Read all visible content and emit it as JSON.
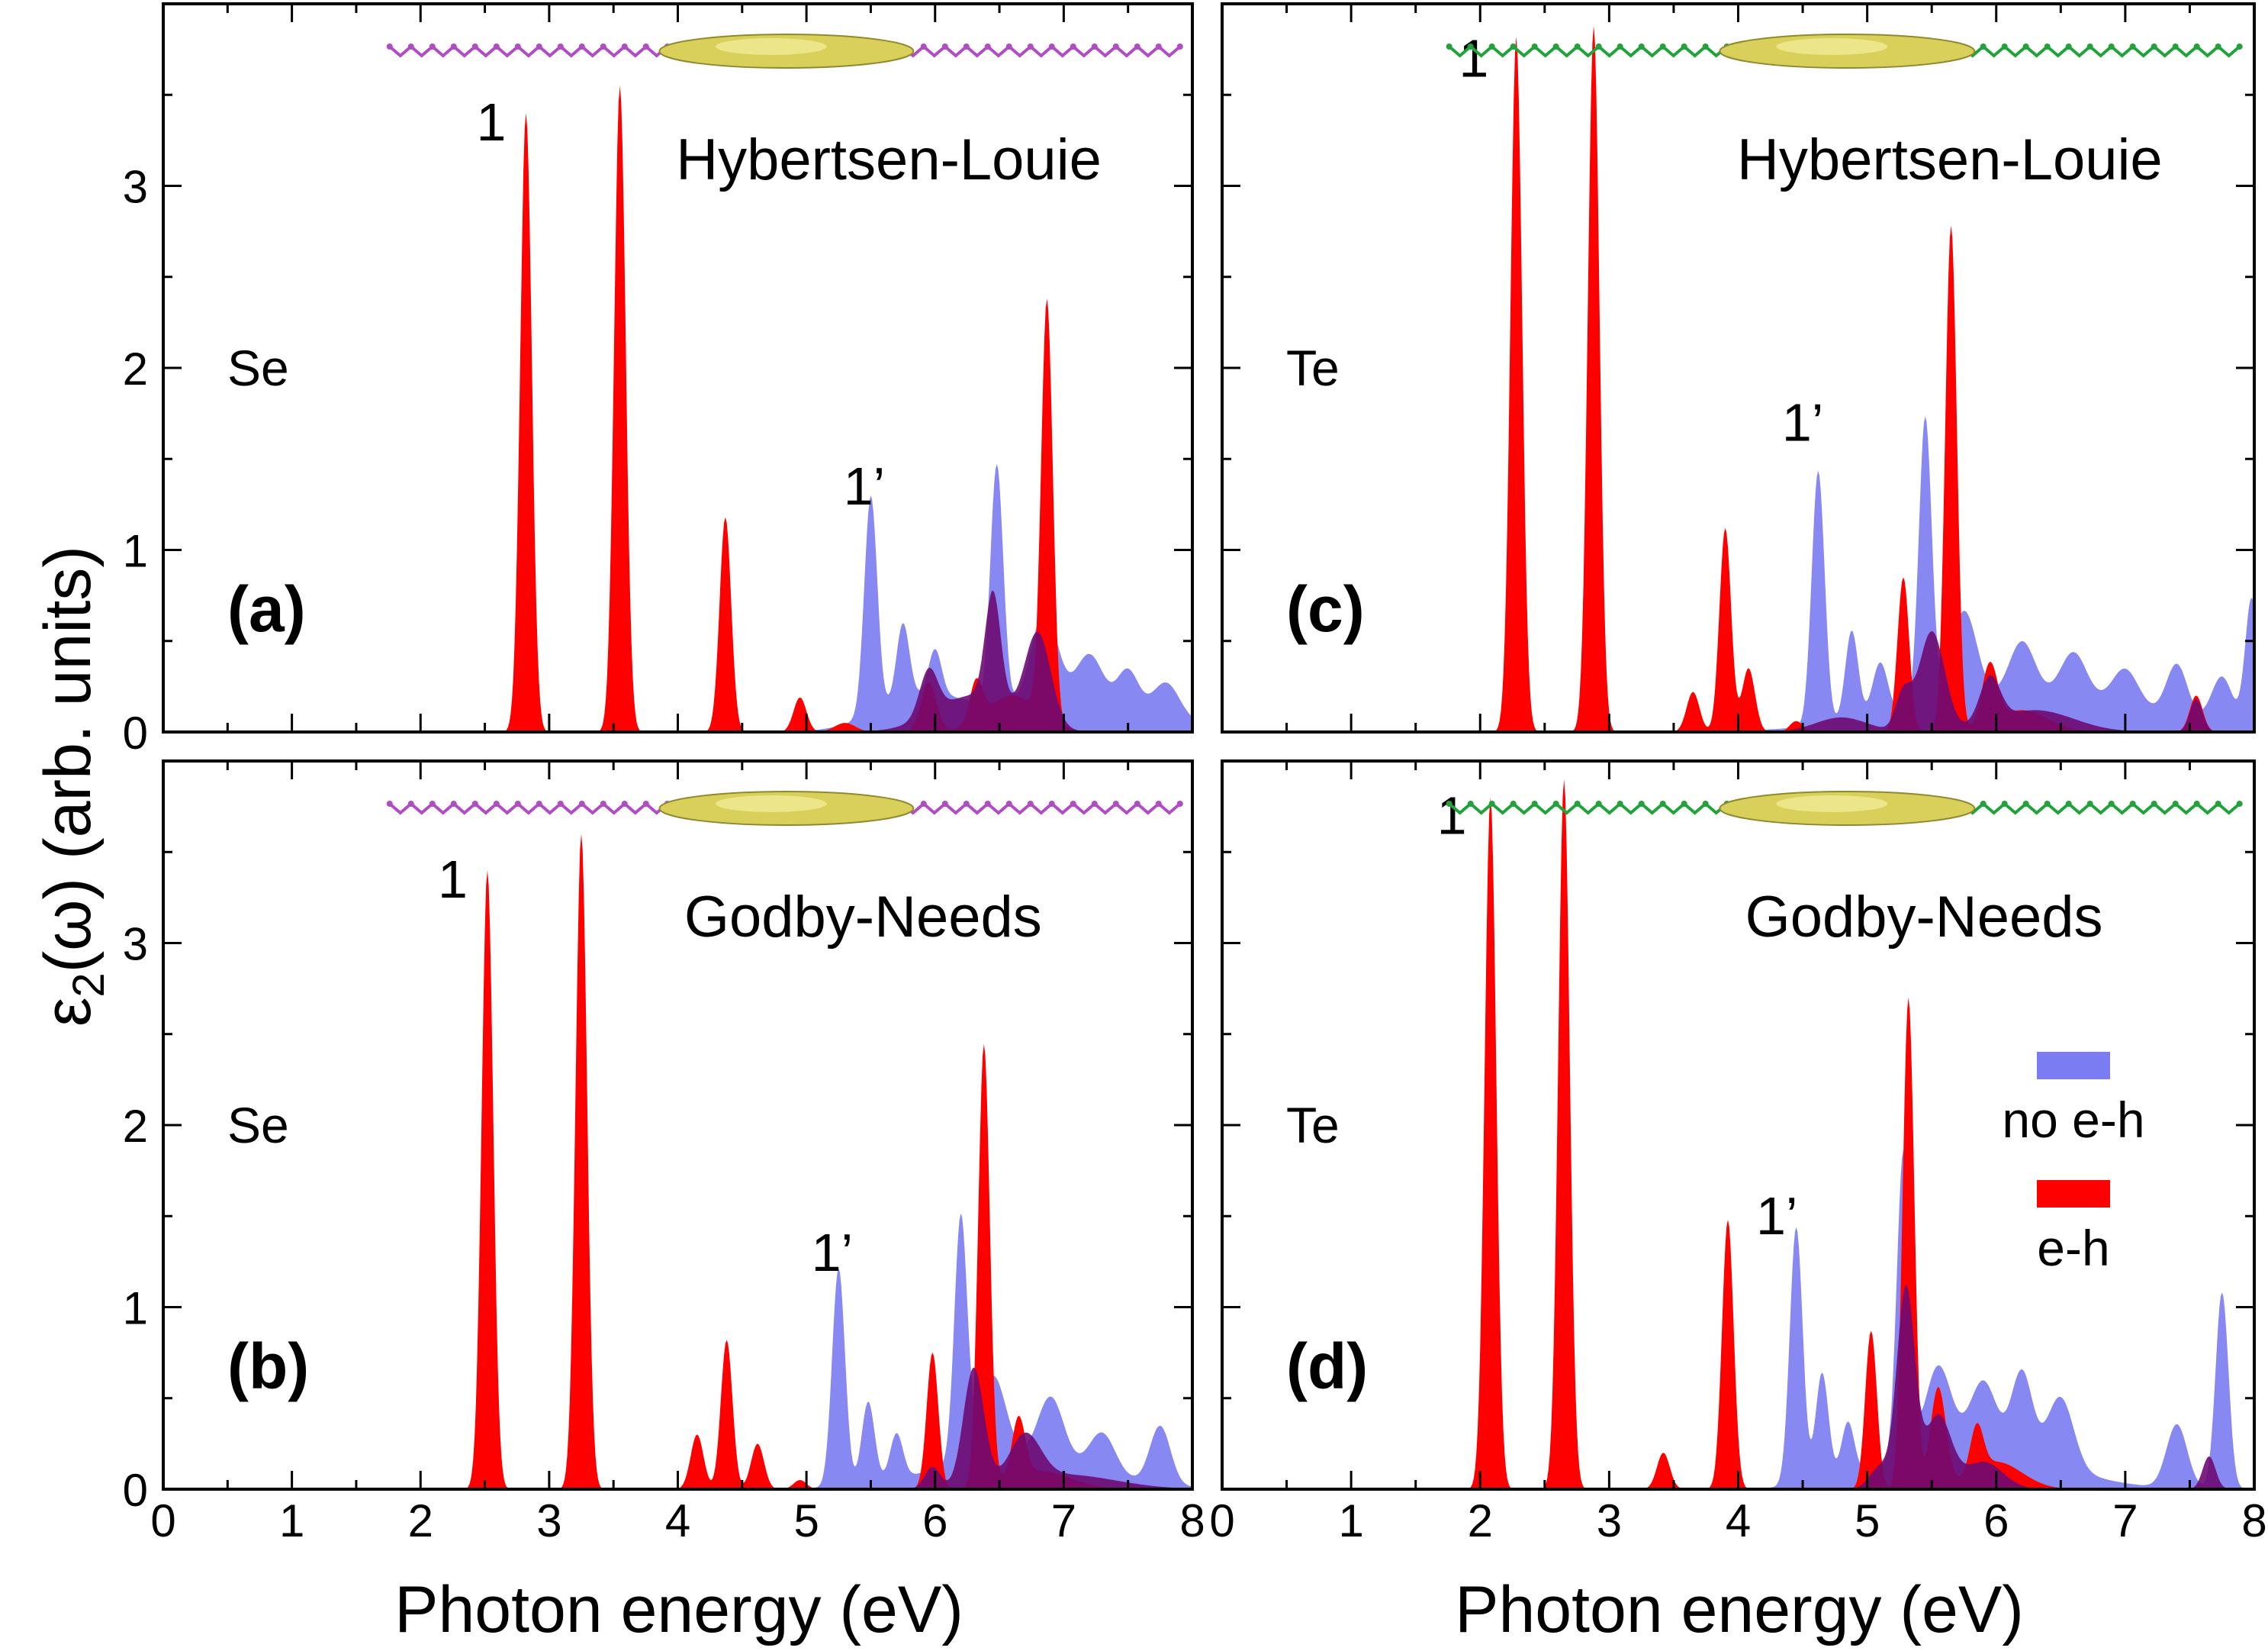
{
  "figure": {
    "ylabel_pre": "ε",
    "ylabel_sub": "2",
    "ylabel_post": "(ω) (arb. units)",
    "xlabel": "Photon energy (eV)",
    "legend": {
      "no_eh": "no e-h",
      "eh": "e-h"
    },
    "colors": {
      "eh": "#ff0000",
      "no_eh": "#7b7bf2",
      "overlap": "#6e0a72",
      "se_chain": "#b04cc4",
      "te_chain": "#21a33a",
      "density": "#d8d05a"
    }
  },
  "chart_data": [
    {
      "id": "a",
      "type": "area",
      "panel_label": "(a)",
      "element": "Se",
      "method": "Hybertsen-Louie",
      "xlim": [
        0,
        8
      ],
      "ylim": [
        0,
        4
      ],
      "xticks": [
        0,
        1,
        2,
        3,
        4,
        5,
        6,
        7,
        8
      ],
      "yticks": [
        0,
        1,
        2,
        3
      ],
      "peak_labels": [
        {
          "text": "1",
          "x": 2.55,
          "y": 3.25
        },
        {
          "text": "1’",
          "x": 5.45,
          "y": 1.25
        }
      ],
      "series": [
        {
          "name": "e-h",
          "peaks": [
            [
              2.82,
              3.4,
              0.045
            ],
            [
              3.55,
              3.55,
              0.045
            ],
            [
              4.37,
              1.18,
              0.045
            ],
            [
              4.95,
              0.19,
              0.05
            ],
            [
              5.3,
              0.05,
              0.08
            ],
            [
              5.95,
              0.27,
              0.06
            ],
            [
              6.32,
              0.22,
              0.05
            ],
            [
              6.87,
              2.3,
              0.045
            ],
            [
              6.6,
              0.2,
              0.2
            ]
          ]
        },
        {
          "name": "no e-h",
          "peaks": [
            [
              5.5,
              1.2,
              0.05
            ],
            [
              5.75,
              0.42,
              0.05
            ],
            [
              6.0,
              0.25,
              0.05
            ],
            [
              5.9,
              0.18,
              0.35
            ],
            [
              6.48,
              1.32,
              0.05
            ],
            [
              6.85,
              0.5,
              0.1
            ],
            [
              7.2,
              0.25,
              0.1
            ],
            [
              7.5,
              0.2,
              0.08
            ],
            [
              7.8,
              0.18,
              0.1
            ],
            [
              7.1,
              0.18,
              0.6
            ]
          ]
        },
        {
          "name": "overlap",
          "peaks": [
            [
              6.45,
              0.6,
              0.06
            ],
            [
              6.8,
              0.5,
              0.1
            ],
            [
              5.95,
              0.25,
              0.07
            ],
            [
              6.3,
              0.2,
              0.3
            ]
          ]
        }
      ]
    },
    {
      "id": "b",
      "type": "area",
      "panel_label": "(b)",
      "element": "Se",
      "method": "Godby-Needs",
      "xlim": [
        0,
        8
      ],
      "ylim": [
        0,
        4
      ],
      "xticks": [
        0,
        1,
        2,
        3,
        4,
        5,
        6,
        7,
        8
      ],
      "yticks": [
        0,
        1,
        2,
        3
      ],
      "peak_labels": [
        {
          "text": "1",
          "x": 2.25,
          "y": 3.25
        },
        {
          "text": "1’",
          "x": 5.2,
          "y": 1.2
        }
      ],
      "series": [
        {
          "name": "e-h",
          "peaks": [
            [
              2.52,
              3.4,
              0.045
            ],
            [
              3.25,
              3.6,
              0.045
            ],
            [
              4.15,
              0.3,
              0.05
            ],
            [
              4.38,
              0.82,
              0.045
            ],
            [
              4.62,
              0.25,
              0.05
            ],
            [
              4.95,
              0.05,
              0.05
            ],
            [
              5.98,
              0.75,
              0.045
            ],
            [
              6.38,
              2.42,
              0.045
            ],
            [
              6.65,
              0.32,
              0.05
            ],
            [
              6.8,
              0.1,
              0.25
            ]
          ]
        },
        {
          "name": "no e-h",
          "peaks": [
            [
              5.25,
              1.2,
              0.05
            ],
            [
              5.48,
              0.45,
              0.05
            ],
            [
              5.7,
              0.25,
              0.05
            ],
            [
              6.2,
              1.35,
              0.05
            ],
            [
              6.45,
              0.45,
              0.1
            ],
            [
              6.9,
              0.35,
              0.1
            ],
            [
              7.3,
              0.22,
              0.1
            ],
            [
              7.75,
              0.32,
              0.08
            ],
            [
              6.6,
              0.18,
              0.6
            ]
          ]
        },
        {
          "name": "overlap",
          "peaks": [
            [
              6.3,
              0.65,
              0.08
            ],
            [
              5.98,
              0.12,
              0.06
            ],
            [
              6.7,
              0.25,
              0.12
            ],
            [
              7.0,
              0.08,
              0.4
            ]
          ]
        }
      ]
    },
    {
      "id": "c",
      "type": "area",
      "panel_label": "(c)",
      "element": "Te",
      "method": "Hybertsen-Louie",
      "xlim": [
        0,
        8
      ],
      "ylim": [
        0,
        4
      ],
      "xticks": [
        0,
        1,
        2,
        3,
        4,
        5,
        6,
        7,
        8
      ],
      "yticks": [
        0,
        1,
        2,
        3
      ],
      "peak_labels": [
        {
          "text": "1",
          "x": 1.95,
          "y": 3.6
        },
        {
          "text": "1’",
          "x": 4.5,
          "y": 1.6
        }
      ],
      "series": [
        {
          "name": "e-h",
          "peaks": [
            [
              2.28,
              3.82,
              0.045
            ],
            [
              2.88,
              3.88,
              0.045
            ],
            [
              3.65,
              0.22,
              0.05
            ],
            [
              3.9,
              1.12,
              0.045
            ],
            [
              4.08,
              0.35,
              0.05
            ],
            [
              4.45,
              0.06,
              0.05
            ],
            [
              5.28,
              0.85,
              0.045
            ],
            [
              5.65,
              2.78,
              0.045
            ],
            [
              5.95,
              0.33,
              0.06
            ],
            [
              6.2,
              0.12,
              0.2
            ],
            [
              7.55,
              0.2,
              0.05
            ]
          ]
        },
        {
          "name": "no e-h",
          "peaks": [
            [
              4.62,
              1.4,
              0.05
            ],
            [
              4.88,
              0.5,
              0.05
            ],
            [
              5.1,
              0.3,
              0.06
            ],
            [
              5.45,
              1.6,
              0.05
            ],
            [
              5.75,
              0.5,
              0.1
            ],
            [
              6.2,
              0.3,
              0.1
            ],
            [
              6.6,
              0.25,
              0.1
            ],
            [
              7.0,
              0.2,
              0.1
            ],
            [
              7.4,
              0.28,
              0.08
            ],
            [
              7.75,
              0.25,
              0.08
            ],
            [
              7.98,
              0.7,
              0.05
            ],
            [
              6.3,
              0.2,
              0.9
            ]
          ]
        },
        {
          "name": "overlap",
          "peaks": [
            [
              5.5,
              0.55,
              0.1
            ],
            [
              5.28,
              0.2,
              0.06
            ],
            [
              5.95,
              0.25,
              0.08
            ],
            [
              6.3,
              0.12,
              0.3
            ],
            [
              7.55,
              0.18,
              0.05
            ],
            [
              4.8,
              0.08,
              0.2
            ]
          ]
        }
      ]
    },
    {
      "id": "d",
      "type": "area",
      "panel_label": "(d)",
      "element": "Te",
      "method": "Godby-Needs",
      "xlim": [
        0,
        8
      ],
      "ylim": [
        0,
        4
      ],
      "xticks": [
        0,
        1,
        2,
        3,
        4,
        5,
        6,
        7,
        8
      ],
      "yticks": [
        0,
        1,
        2,
        3
      ],
      "peak_labels": [
        {
          "text": "1",
          "x": 1.78,
          "y": 3.6
        },
        {
          "text": "1’",
          "x": 4.3,
          "y": 1.4
        }
      ],
      "series": [
        {
          "name": "e-h",
          "peaks": [
            [
              2.08,
              3.8,
              0.045
            ],
            [
              2.65,
              3.9,
              0.045
            ],
            [
              3.42,
              0.2,
              0.05
            ],
            [
              3.92,
              1.48,
              0.045
            ],
            [
              5.03,
              0.87,
              0.045
            ],
            [
              5.32,
              2.7,
              0.045
            ],
            [
              5.55,
              0.55,
              0.06
            ],
            [
              5.85,
              0.25,
              0.05
            ],
            [
              6.0,
              0.15,
              0.2
            ]
          ]
        },
        {
          "name": "no e-h",
          "peaks": [
            [
              4.45,
              1.42,
              0.05
            ],
            [
              4.65,
              0.6,
              0.05
            ],
            [
              4.85,
              0.3,
              0.05
            ],
            [
              5.28,
              1.68,
              0.05
            ],
            [
              5.55,
              0.45,
              0.1
            ],
            [
              5.9,
              0.35,
              0.1
            ],
            [
              6.2,
              0.45,
              0.08
            ],
            [
              6.5,
              0.38,
              0.1
            ],
            [
              7.4,
              0.35,
              0.08
            ],
            [
              7.75,
              1.08,
              0.05
            ],
            [
              5.8,
              0.25,
              0.6
            ]
          ]
        },
        {
          "name": "overlap",
          "peaks": [
            [
              5.3,
              1.1,
              0.07
            ],
            [
              5.55,
              0.4,
              0.1
            ],
            [
              5.9,
              0.15,
              0.15
            ],
            [
              7.65,
              0.18,
              0.05
            ],
            [
              5.1,
              0.12,
              0.08
            ]
          ]
        }
      ]
    }
  ]
}
